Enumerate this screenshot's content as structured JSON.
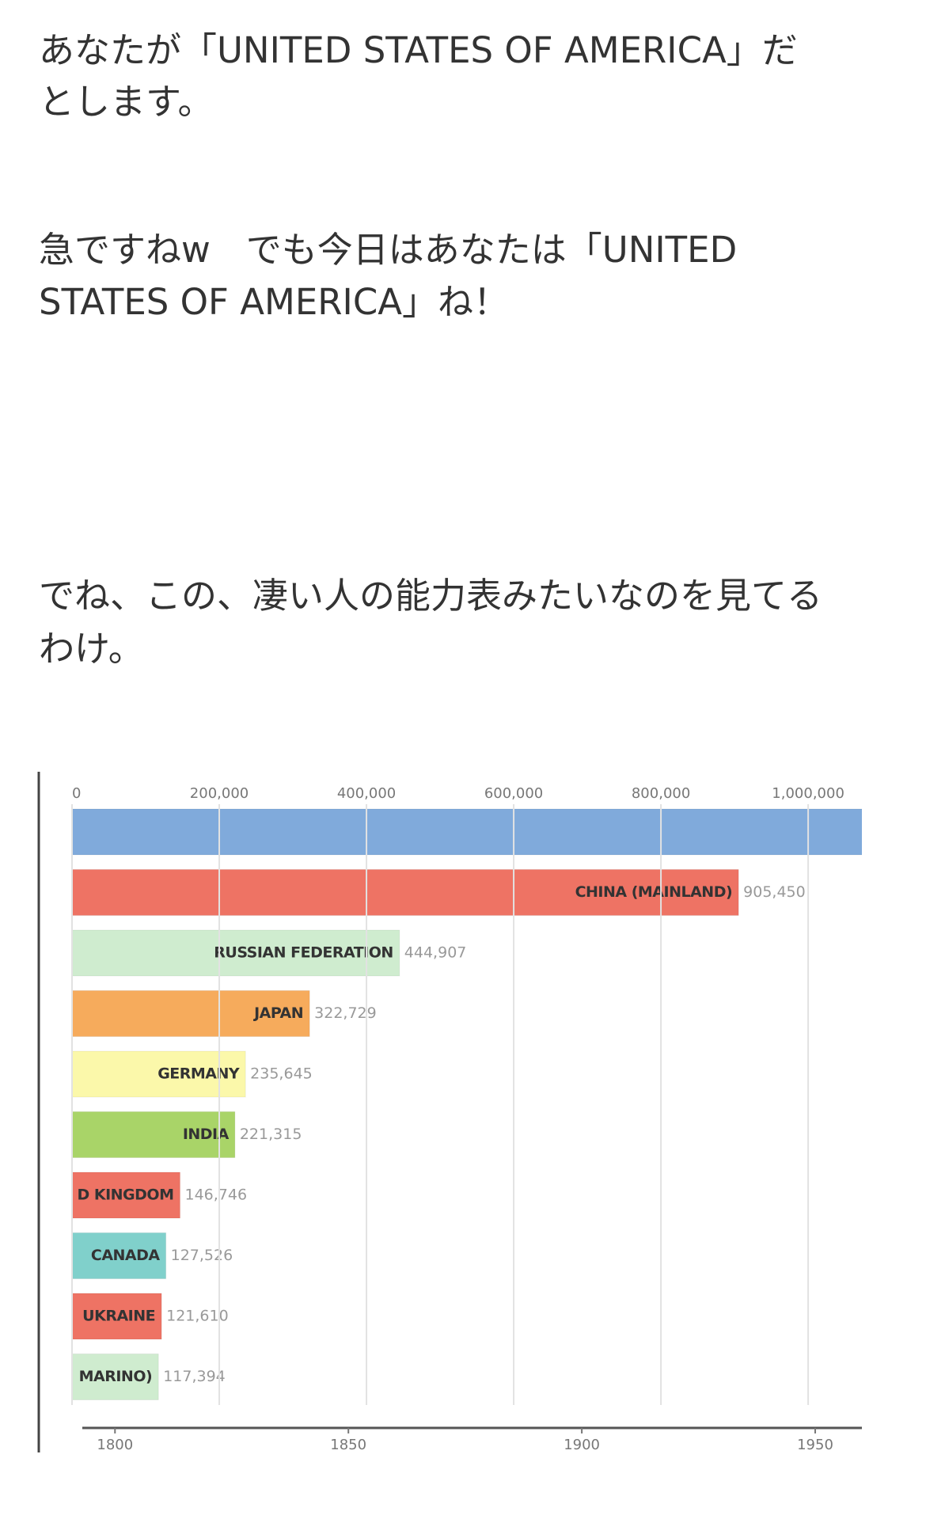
{
  "paragraphs": [
    [
      "あなたが「UNITED STATES OF AMERICA」だ",
      "とします。"
    ],
    [
      "急ですねw　でも今日はあなたは「UNITED",
      "STATES OF AMERICA」ね！"
    ],
    [
      "でね、この、凄い人の能力表みたいなのを見てる",
      "わけ。"
    ]
  ],
  "chart_data": {
    "type": "bar",
    "orientation": "horizontal",
    "categories": [
      null,
      "CHINA (MAINLAND)",
      "RUSSIAN FEDERATION",
      "JAPAN",
      "GERMANY",
      "INDIA",
      "D KINGDOM",
      "CANADA",
      "UKRAINE",
      "MARINO)"
    ],
    "values": [
      1100000,
      905450,
      444907,
      322729,
      235645,
      221315,
      146746,
      127526,
      121610,
      117394
    ],
    "value_labels": [
      null,
      "905,450",
      "444,907",
      "322,729",
      "235,645",
      "221,315",
      "146,746",
      "127,526",
      "121,610",
      "117,394"
    ],
    "colors": [
      "#80aadb",
      "#ee7364",
      "#cfeccf",
      "#f6ab5c",
      "#fbf8aa",
      "#a9d468",
      "#ee7364",
      "#80d0cb",
      "#ee7364",
      "#cfeccf"
    ],
    "xlim": [
      0,
      1073000
    ],
    "xticks": [
      0,
      {
        "value": 200000,
        "label": "200,000"
      },
      {
        "value": 400000,
        "label": "400,000"
      },
      {
        "value": 600000,
        "label": "600,000"
      },
      {
        "value": 800000,
        "label": "800,000"
      },
      {
        "value": 1000000,
        "label": "1,000,000"
      }
    ],
    "grid": true,
    "timeline": {
      "lim": [
        1793,
        1960
      ],
      "ticks": [
        1800,
        1850,
        1900,
        1950
      ]
    }
  }
}
